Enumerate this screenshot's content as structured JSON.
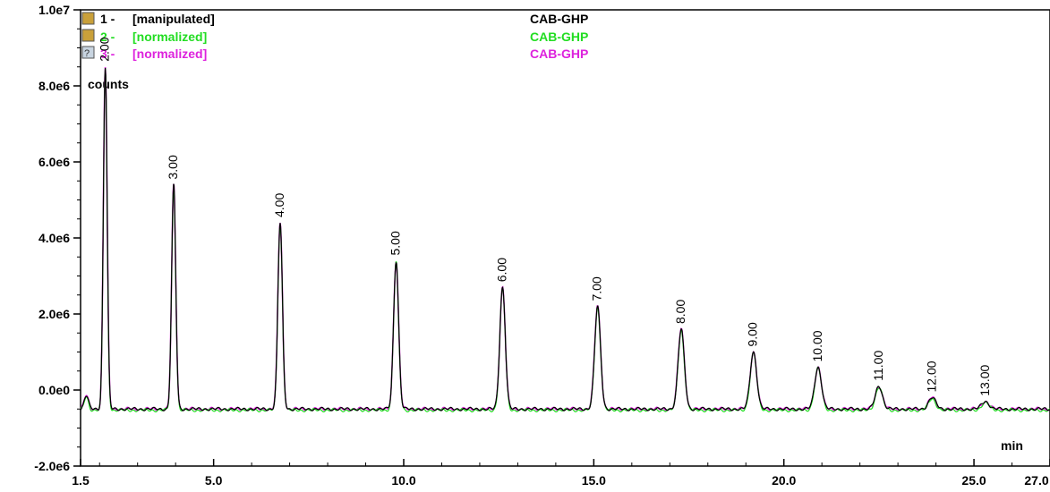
{
  "legend": [
    {
      "index": "1 -",
      "name": "[manipulated]",
      "sample": "CAB-GHP",
      "color": "#000000",
      "icon": "flask-icon"
    },
    {
      "index": "2 -",
      "name": "[normalized]",
      "sample": "CAB-GHP",
      "color": "#22dd22",
      "icon": "flask-icon"
    },
    {
      "index": "3 -",
      "name": "[normalized]",
      "sample": "CAB-GHP",
      "color": "#dd22dd",
      "icon": "unknown-icon"
    }
  ],
  "chart_data": {
    "type": "line",
    "xlabel": "min",
    "ylabel": "counts",
    "xlim": [
      1.5,
      27.0
    ],
    "ylim": [
      -2000000,
      10000000
    ],
    "grid": false,
    "x_ticks": [
      "1.5",
      "5.0",
      "10.0",
      "15.0",
      "20.0",
      "25.0",
      "27.0"
    ],
    "y_ticks": [
      "1.0e7",
      "8.0e6",
      "6.0e6",
      "4.0e6",
      "2.0e6",
      "0.0e0",
      "-2.0e6"
    ],
    "baseline": -500000,
    "peaks": [
      {
        "label": "2.00",
        "x": 2.15,
        "y": 8500000
      },
      {
        "label": "3.00",
        "x": 3.95,
        "y": 5400000
      },
      {
        "label": "4.00",
        "x": 6.75,
        "y": 4400000
      },
      {
        "label": "5.00",
        "x": 9.8,
        "y": 3400000
      },
      {
        "label": "6.00",
        "x": 12.6,
        "y": 2700000
      },
      {
        "label": "7.00",
        "x": 15.1,
        "y": 2200000
      },
      {
        "label": "8.00",
        "x": 17.3,
        "y": 1600000
      },
      {
        "label": "9.00",
        "x": 19.2,
        "y": 1000000
      },
      {
        "label": "10.00",
        "x": 20.9,
        "y": 600000
      },
      {
        "label": "11.00",
        "x": 22.5,
        "y": 100000
      },
      {
        "label": "12.00",
        "x": 23.9,
        "y": -200000
      },
      {
        "label": "13.00",
        "x": 25.3,
        "y": -300000
      }
    ],
    "series": [
      {
        "name": "1 - [manipulated]",
        "color": "#000000"
      },
      {
        "name": "2 - [normalized]",
        "color": "#22dd22"
      },
      {
        "name": "3 - [normalized]",
        "color": "#dd22dd"
      }
    ]
  }
}
